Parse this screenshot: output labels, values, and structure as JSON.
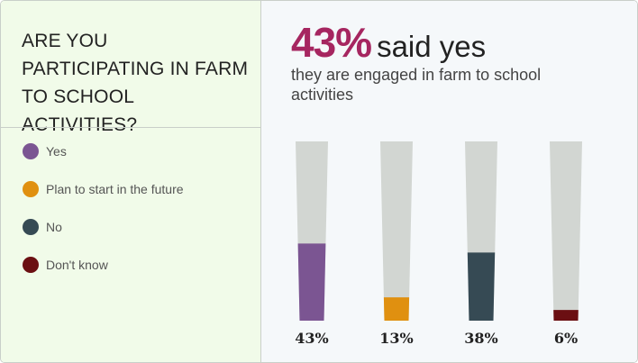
{
  "question": "ARE YOU PARTICIPATING IN FARM TO SCHOOL ACTIVITIES?",
  "headline": {
    "percent": "43%",
    "text": "said yes"
  },
  "subtitle": "they are engaged in farm to school activities",
  "legend": [
    {
      "label": "Yes",
      "color": "#7b5592"
    },
    {
      "label": "Plan to start in the future",
      "color": "#e09010"
    },
    {
      "label": "No",
      "color": "#364a54"
    },
    {
      "label": "Don't know",
      "color": "#6b0f12"
    }
  ],
  "chart_data": {
    "type": "bar",
    "categories": [
      "Yes",
      "Plan to start in the future",
      "No",
      "Don't know"
    ],
    "values": [
      43,
      13,
      38,
      6
    ],
    "value_labels": [
      "43%",
      "13%",
      "38%",
      "6%"
    ],
    "colors": [
      "#7b5592",
      "#e09010",
      "#364a54",
      "#6b0f12"
    ],
    "track_color": "#d2d6d2",
    "ylim": [
      0,
      100
    ],
    "title": "",
    "xlabel": "",
    "ylabel": ""
  }
}
